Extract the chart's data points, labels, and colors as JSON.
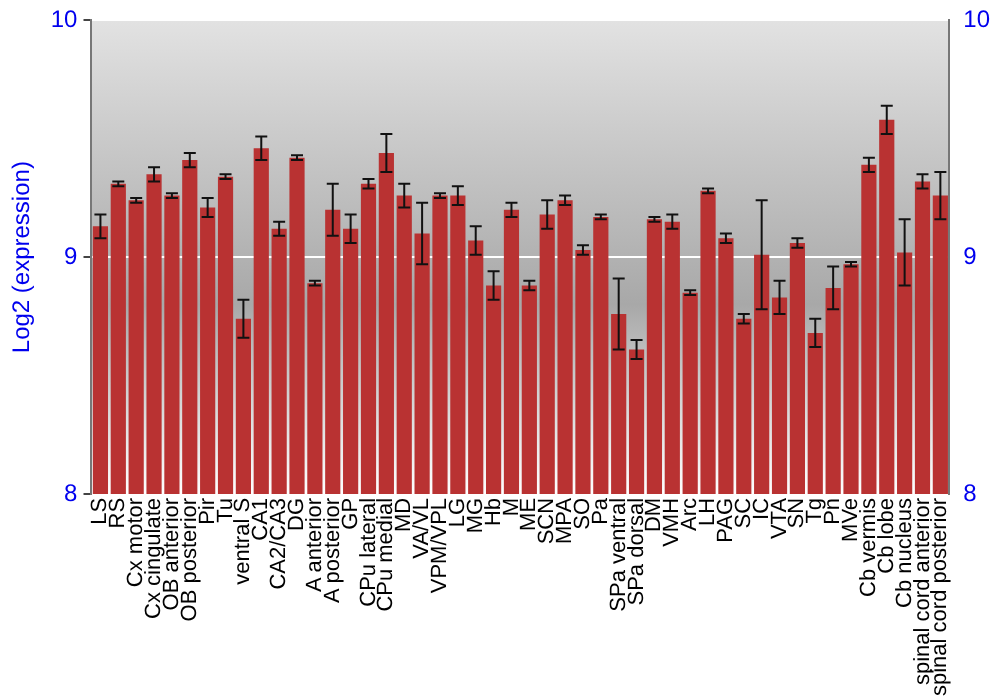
{
  "chart_data": {
    "type": "bar",
    "ylabel": "Log2 (expression)",
    "categories": [
      "LS",
      "RS",
      "Cx motor",
      "Cx cingulate",
      "OB anterior",
      "OB posterior",
      "Pir",
      "Tu",
      "ventral S",
      "CA1",
      "CA2/CA3",
      "DG",
      "A anterior",
      "A posterior",
      "GP",
      "CPu lateral",
      "CPu medial",
      "MD",
      "VA/VL",
      "VPM/VPL",
      "LG",
      "MG",
      "Hb",
      "M",
      "ME",
      "SCN",
      "MPA",
      "SO",
      "Pa",
      "SPa ventral",
      "SPa dorsal",
      "DM",
      "VMH",
      "Arc",
      "LH",
      "PAG",
      "SC",
      "IC",
      "VTA",
      "SN",
      "Tg",
      "Pn",
      "MVe",
      "Cb vermis",
      "Cb lobe",
      "Cb nucleus",
      "spinal cord anterior",
      "spinal cord posterior"
    ],
    "values": [
      9.13,
      9.31,
      9.24,
      9.35,
      9.26,
      9.41,
      9.21,
      9.34,
      8.74,
      9.46,
      9.12,
      9.42,
      8.89,
      9.2,
      9.12,
      9.31,
      9.44,
      9.26,
      9.1,
      9.26,
      9.26,
      9.07,
      8.88,
      9.2,
      8.88,
      9.18,
      9.24,
      9.03,
      9.17,
      8.76,
      8.61,
      9.16,
      9.15,
      8.85,
      9.28,
      9.08,
      8.74,
      9.01,
      8.83,
      9.06,
      8.68,
      8.87,
      8.97,
      9.39,
      9.58,
      9.02,
      9.32,
      9.26
    ],
    "errors": [
      0.05,
      0.01,
      0.01,
      0.03,
      0.01,
      0.03,
      0.04,
      0.01,
      0.08,
      0.05,
      0.03,
      0.01,
      0.01,
      0.11,
      0.06,
      0.02,
      0.08,
      0.05,
      0.13,
      0.01,
      0.04,
      0.06,
      0.06,
      0.03,
      0.02,
      0.06,
      0.02,
      0.02,
      0.01,
      0.15,
      0.04,
      0.01,
      0.03,
      0.01,
      0.01,
      0.02,
      0.02,
      0.23,
      0.07,
      0.02,
      0.06,
      0.09,
      0.01,
      0.03,
      0.06,
      0.14,
      0.03,
      0.1
    ],
    "color": "#b93232",
    "ylim": [
      8,
      10
    ],
    "yticks": [
      8,
      9,
      10
    ],
    "y2lim": [
      8,
      10
    ],
    "y2ticks": [
      8,
      9,
      10
    ],
    "grid": "y"
  }
}
